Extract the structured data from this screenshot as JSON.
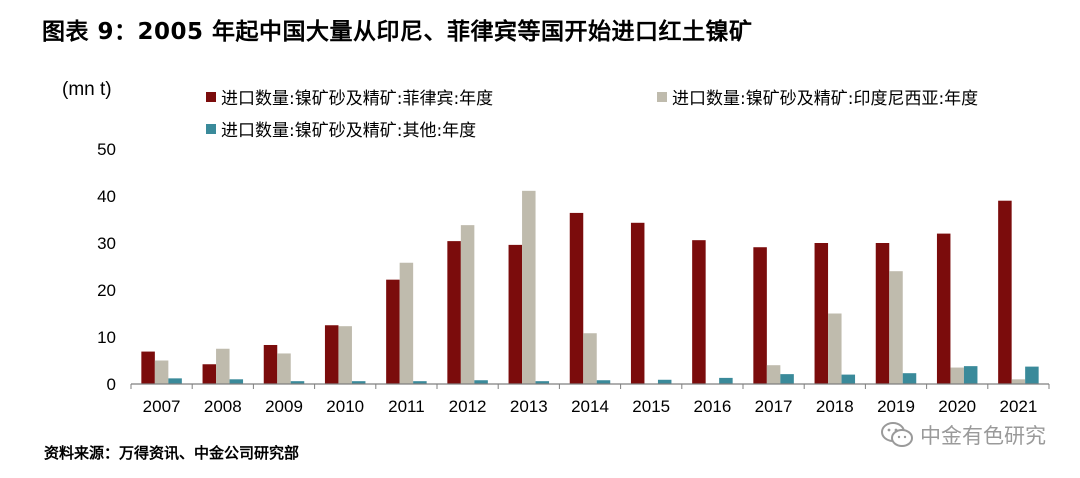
{
  "figure_title": "图表 9：2005 年起中国大量从印尼、菲律宾等国开始进口红土镍矿",
  "unit_label": "(mn t)",
  "source": "资料来源：万得资讯、中金公司研究部",
  "watermark": "中金有色研究",
  "colors": {
    "series0": "#7b0c0c",
    "series1": "#bfbbad",
    "series2": "#3a8a9a",
    "axis": "#7f7f7f"
  },
  "chart_data": {
    "type": "bar",
    "title": "",
    "xlabel": "",
    "ylabel": "(mn t)",
    "ylim": [
      0,
      50
    ],
    "yticks": [
      0,
      10,
      20,
      30,
      40,
      50
    ],
    "grid": false,
    "legend_position": "top",
    "categories": [
      "2007",
      "2008",
      "2009",
      "2010",
      "2011",
      "2012",
      "2013",
      "2014",
      "2015",
      "2016",
      "2017",
      "2018",
      "2019",
      "2020",
      "2021"
    ],
    "series": [
      {
        "name": "进口数量:镍矿砂及精矿:菲律宾:年度",
        "values": [
          6.9,
          4.2,
          8.3,
          12.5,
          22.2,
          30.4,
          29.6,
          36.4,
          34.3,
          30.6,
          29.1,
          30.0,
          30.0,
          32.0,
          39.0
        ]
      },
      {
        "name": "进口数量:镍矿砂及精矿:印度尼西亚:年度",
        "values": [
          5.0,
          7.5,
          6.5,
          12.3,
          25.8,
          33.8,
          41.1,
          10.8,
          0.0,
          0.0,
          4.0,
          15.0,
          24.0,
          3.5,
          1.0
        ]
      },
      {
        "name": "进口数量:镍矿砂及精矿:其他:年度",
        "values": [
          1.2,
          1.0,
          0.6,
          0.6,
          0.6,
          0.8,
          0.6,
          0.8,
          0.9,
          1.3,
          2.1,
          2.0,
          2.3,
          3.8,
          3.7
        ]
      }
    ]
  }
}
